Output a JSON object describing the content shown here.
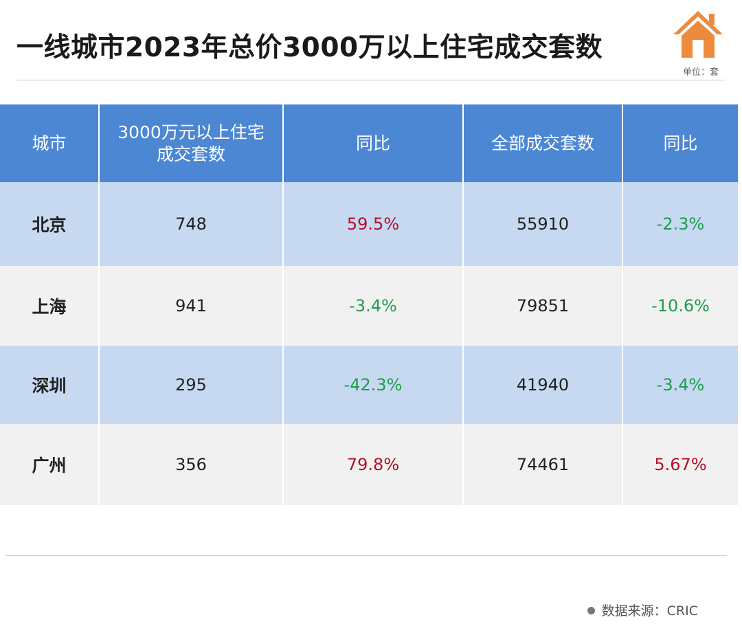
{
  "title": "一线城市2023年总价3000万以上住宅成交套数",
  "unit": "单位：套",
  "colors": {
    "header_bg": "#4b87d3",
    "row_blue": "#c6d9f1",
    "row_gray": "#f1f1f1",
    "up": "#b3102a",
    "down": "#1f9d4a",
    "icon": "#ee8a3c"
  },
  "table": {
    "headers": [
      "城市",
      "3000万元以上住宅成交套数",
      "同比",
      "全部成交套数",
      "同比"
    ],
    "rows": [
      {
        "city": "北京",
        "luxury": "748",
        "luxury_yoy": "59.5%",
        "total": "55910",
        "total_yoy": "-2.3%"
      },
      {
        "city": "上海",
        "luxury": "941",
        "luxury_yoy": "-3.4%",
        "total": "79851",
        "total_yoy": "-10.6%"
      },
      {
        "city": "深圳",
        "luxury": "295",
        "luxury_yoy": "-42.3%",
        "total": "41940",
        "total_yoy": "-3.4%"
      },
      {
        "city": "广州",
        "luxury": "356",
        "luxury_yoy": "79.8%",
        "total": "74461",
        "total_yoy": "5.67%"
      }
    ]
  },
  "source": "数据来源：CRIC"
}
